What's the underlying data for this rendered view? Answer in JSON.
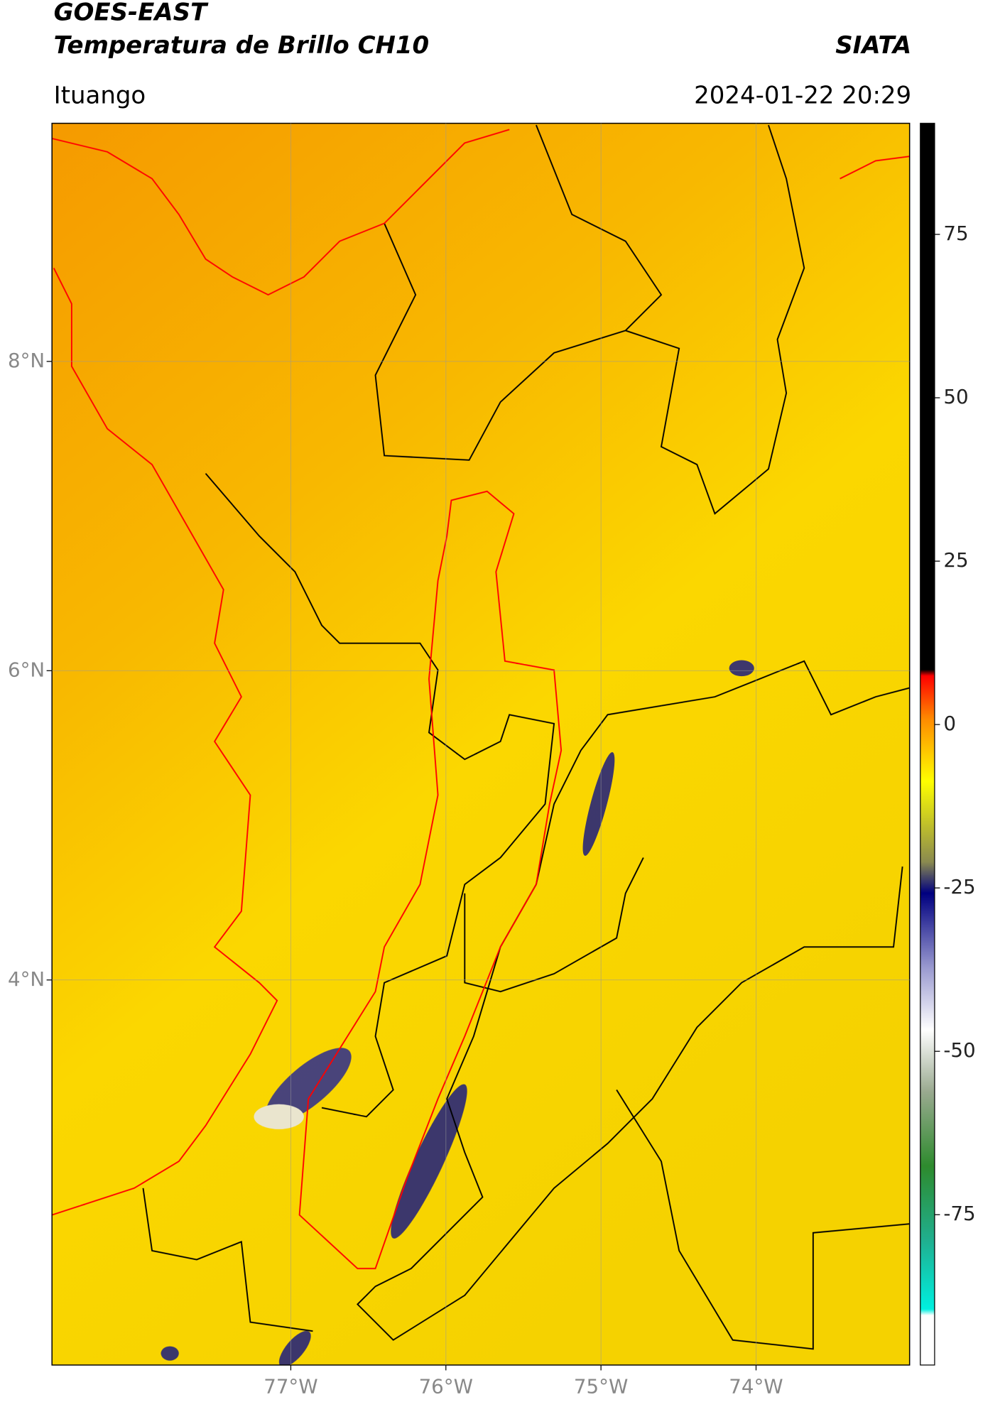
{
  "header": {
    "title_line1": "GOES-EAST",
    "title_line2": "Temperatura de Brillo CH10",
    "source": "SIATA",
    "location": "Ituango",
    "datetime": "2024-01-22 20:29"
  },
  "map": {
    "xlim": [
      -78.54,
      -73.01
    ],
    "ylim": [
      1.51,
      9.54
    ],
    "xticks": [
      {
        "value": -77,
        "label": "77°W"
      },
      {
        "value": -76,
        "label": "76°W"
      },
      {
        "value": -75,
        "label": "75°W"
      },
      {
        "value": -74,
        "label": "74°W"
      }
    ],
    "yticks": [
      {
        "value": 8,
        "label": "8°N"
      },
      {
        "value": 6,
        "label": "6°N"
      },
      {
        "value": 4,
        "label": "4°N"
      }
    ],
    "grid": true
  },
  "colorbar": {
    "lim": [
      -98,
      92
    ],
    "ticks": [
      75,
      50,
      25,
      0,
      -25,
      -50,
      -75
    ]
  }
}
